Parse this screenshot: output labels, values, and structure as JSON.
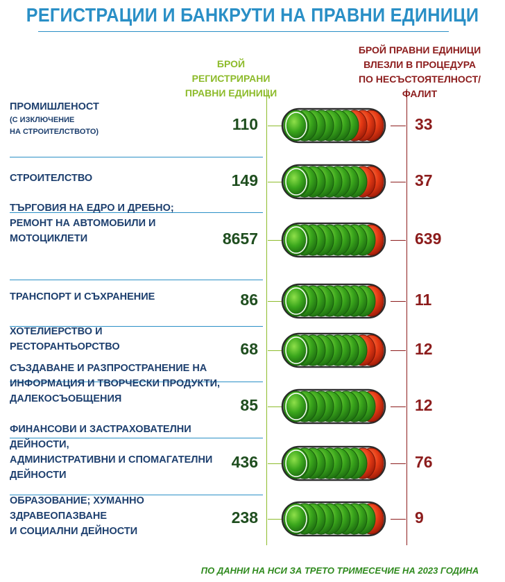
{
  "title": "РЕГИСТРАЦИИ И БАНКРУТИ НА ПРАВНИ ЕДИНИЦИ",
  "headers": {
    "registrations": [
      "БРОЙ РЕГИСТРИРАНИ",
      "ПРАВНИ ЕДИНИЦИ"
    ],
    "bankruptcies": [
      "БРОЙ ПРАВНИ ЕДИНИЦИ",
      "ВЛЕЗЛИ В ПРОЦЕДУРА",
      "ПО НЕСЪСТОЯТЕЛНОСТ/ФАЛИТ"
    ]
  },
  "footer": "ПО ДАННИ НА НСИ ЗА ТРЕТО ТРИМЕСЕЧИЕ НА 2023 ГОДИНА",
  "colors": {
    "title": "#2a8fc6",
    "green": "#8dbb2b",
    "dark_green": "#1f4e1f",
    "red": "#8c1c1c",
    "label": "#1d3f6e"
  },
  "chart_data": {
    "type": "table",
    "title": "РЕГИСТРАЦИИ И БАНКРУТИ НА ПРАВНИ ЕДИНИЦИ",
    "series": [
      {
        "name": "БРОЙ РЕГИСТРИРАНИ ПРАВНИ ЕДИНИЦИ",
        "values": [
          110,
          149,
          8657,
          86,
          68,
          85,
          436,
          238
        ]
      },
      {
        "name": "БРОЙ ПРАВНИ ЕДИНИЦИ ВЛЕЗЛИ В ПРОЦЕДУРА ПО НЕСЪСТОЯТЕЛНОСТ/ФАЛИТ",
        "values": [
          33,
          37,
          639,
          11,
          12,
          12,
          76,
          9
        ]
      }
    ],
    "rows": [
      {
        "lines": [
          "ПРОМИШЛЕНОСТ"
        ],
        "sub": [
          "(С ИЗКЛЮЧЕНИЕ",
          "НА СТРОИТЕЛСТВОТО)"
        ],
        "registered": "110",
        "bankrupt": "33",
        "green_rings": 7,
        "red_rings": 3
      },
      {
        "lines": [
          "СТРОИТЕЛСТВО"
        ],
        "sub": [],
        "registered": "149",
        "bankrupt": "37",
        "green_rings": 8,
        "red_rings": 2
      },
      {
        "lines": [
          "ТЪРГОВИЯ НА ЕДРО И ДРЕБНО;",
          "РЕМОНТ НА АВТОМОБИЛИ И",
          "МОТОЦИКЛЕТИ"
        ],
        "sub": [],
        "registered": "8657",
        "bankrupt": "639",
        "green_rings": 9,
        "red_rings": 1
      },
      {
        "lines": [
          "ТРАНСПОРТ И СЪХРАНЕНИЕ"
        ],
        "sub": [],
        "registered": "86",
        "bankrupt": "11",
        "green_rings": 9,
        "red_rings": 1
      },
      {
        "lines": [
          "ХОТЕЛИЕРСТВО И",
          "РЕСТОРАНТЬОРСТВО"
        ],
        "sub": [],
        "registered": "68",
        "bankrupt": "12",
        "green_rings": 8,
        "red_rings": 2
      },
      {
        "lines": [
          "СЪЗДАВАНЕ И РАЗПРОСТРАНЕНИЕ НА",
          "ИНФОРМАЦИЯ И ТВОРЧЕСКИ ПРОДУКТИ,",
          "ДАЛЕКОСЪОБЩЕНИЯ"
        ],
        "sub": [],
        "registered": "85",
        "bankrupt": "12",
        "green_rings": 9,
        "red_rings": 1
      },
      {
        "lines": [
          "ФИНАНСОВИ И ЗАСТРАХОВАТЕЛНИ ДЕЙНОСТИ,",
          "АДМИНИСТРАТИВНИ И СПОМАГАТЕЛНИ",
          "ДЕЙНОСТИ"
        ],
        "sub": [],
        "registered": "436",
        "bankrupt": "76",
        "green_rings": 8,
        "red_rings": 2
      },
      {
        "lines": [
          "ОБРАЗОВАНИЕ; ХУМАННО ЗДРАВЕОПАЗВАНЕ",
          "И СОЦИАЛНИ ДЕЙНОСТИ"
        ],
        "sub": [],
        "registered": "238",
        "bankrupt": "9",
        "green_rings": 9,
        "red_rings": 1
      }
    ]
  }
}
